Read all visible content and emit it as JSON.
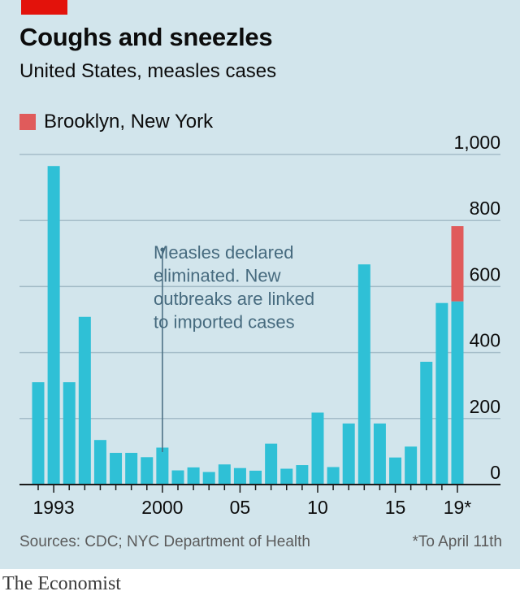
{
  "header": {
    "title": "Coughs and sneezles",
    "subtitle": "United States, measles cases"
  },
  "legend": {
    "label": "Brooklyn, New York",
    "color": "#e05b5b"
  },
  "footer": {
    "source": "Sources: CDC; NYC Department of Health",
    "footnote": "*To April 11th"
  },
  "brand": "The Economist",
  "colors": {
    "panel": "#d2e5ec",
    "bar": "#2fc0d6",
    "highlight": "#e05b5b",
    "accent": "#e3120b",
    "annotation": "#476b7f"
  },
  "chart_data": {
    "type": "bar",
    "stacked": true,
    "x": [
      1992,
      1993,
      1994,
      1995,
      1996,
      1997,
      1998,
      1999,
      2000,
      2001,
      2002,
      2003,
      2004,
      2005,
      2006,
      2007,
      2008,
      2009,
      2010,
      2011,
      2012,
      2013,
      2014,
      2015,
      2016,
      2017,
      2018,
      2019
    ],
    "series": [
      {
        "name": "",
        "color": "#2fc0d6",
        "values": [
          310,
          965,
          310,
          508,
          135,
          96,
          96,
          83,
          112,
          43,
          52,
          38,
          61,
          50,
          42,
          124,
          48,
          59,
          218,
          53,
          185,
          667,
          185,
          82,
          115,
          372,
          550,
          555
        ]
      },
      {
        "name": "Brooklyn, New York",
        "color": "#e05b5b",
        "values": [
          0,
          0,
          0,
          0,
          0,
          0,
          0,
          0,
          0,
          0,
          0,
          0,
          0,
          0,
          0,
          0,
          0,
          0,
          0,
          0,
          0,
          0,
          0,
          0,
          0,
          0,
          0,
          228
        ]
      }
    ],
    "ylim": [
      0,
      1000
    ],
    "yticks": [
      0,
      200,
      400,
      600,
      800,
      1000
    ],
    "ytick_labels": [
      "0",
      "200",
      "400",
      "600",
      "800",
      "1,000"
    ],
    "xticks": [
      1993,
      2000,
      2005,
      2010,
      2015,
      2019
    ],
    "xtick_labels": [
      "1993",
      "2000",
      "05",
      "10",
      "15",
      "19*"
    ],
    "annotation": {
      "x": 2000,
      "lines": [
        "Measles declared",
        "eliminated. New",
        "outbreaks are linked",
        "to imported cases"
      ]
    },
    "grid": true
  }
}
